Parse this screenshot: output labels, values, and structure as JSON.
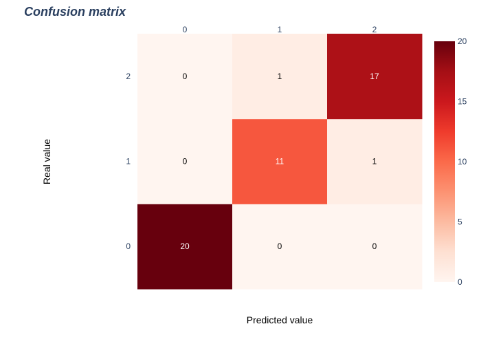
{
  "chart_data": {
    "type": "heatmap",
    "title": "Confusion matrix",
    "xlabel": "Predicted value",
    "ylabel": "Real value",
    "x_categories": [
      "0",
      "1",
      "2"
    ],
    "y_categories": [
      "0",
      "1",
      "2"
    ],
    "z": [
      [
        20,
        0,
        0
      ],
      [
        0,
        11,
        1
      ],
      [
        0,
        1,
        17
      ]
    ],
    "colorscale": "Reds",
    "zmin": 0,
    "zmax": 20,
    "colorbar_ticks": [
      "0",
      "5",
      "10",
      "15",
      "20"
    ],
    "x_axis_side": "top",
    "grid": false,
    "legend": "colorbar-right"
  }
}
